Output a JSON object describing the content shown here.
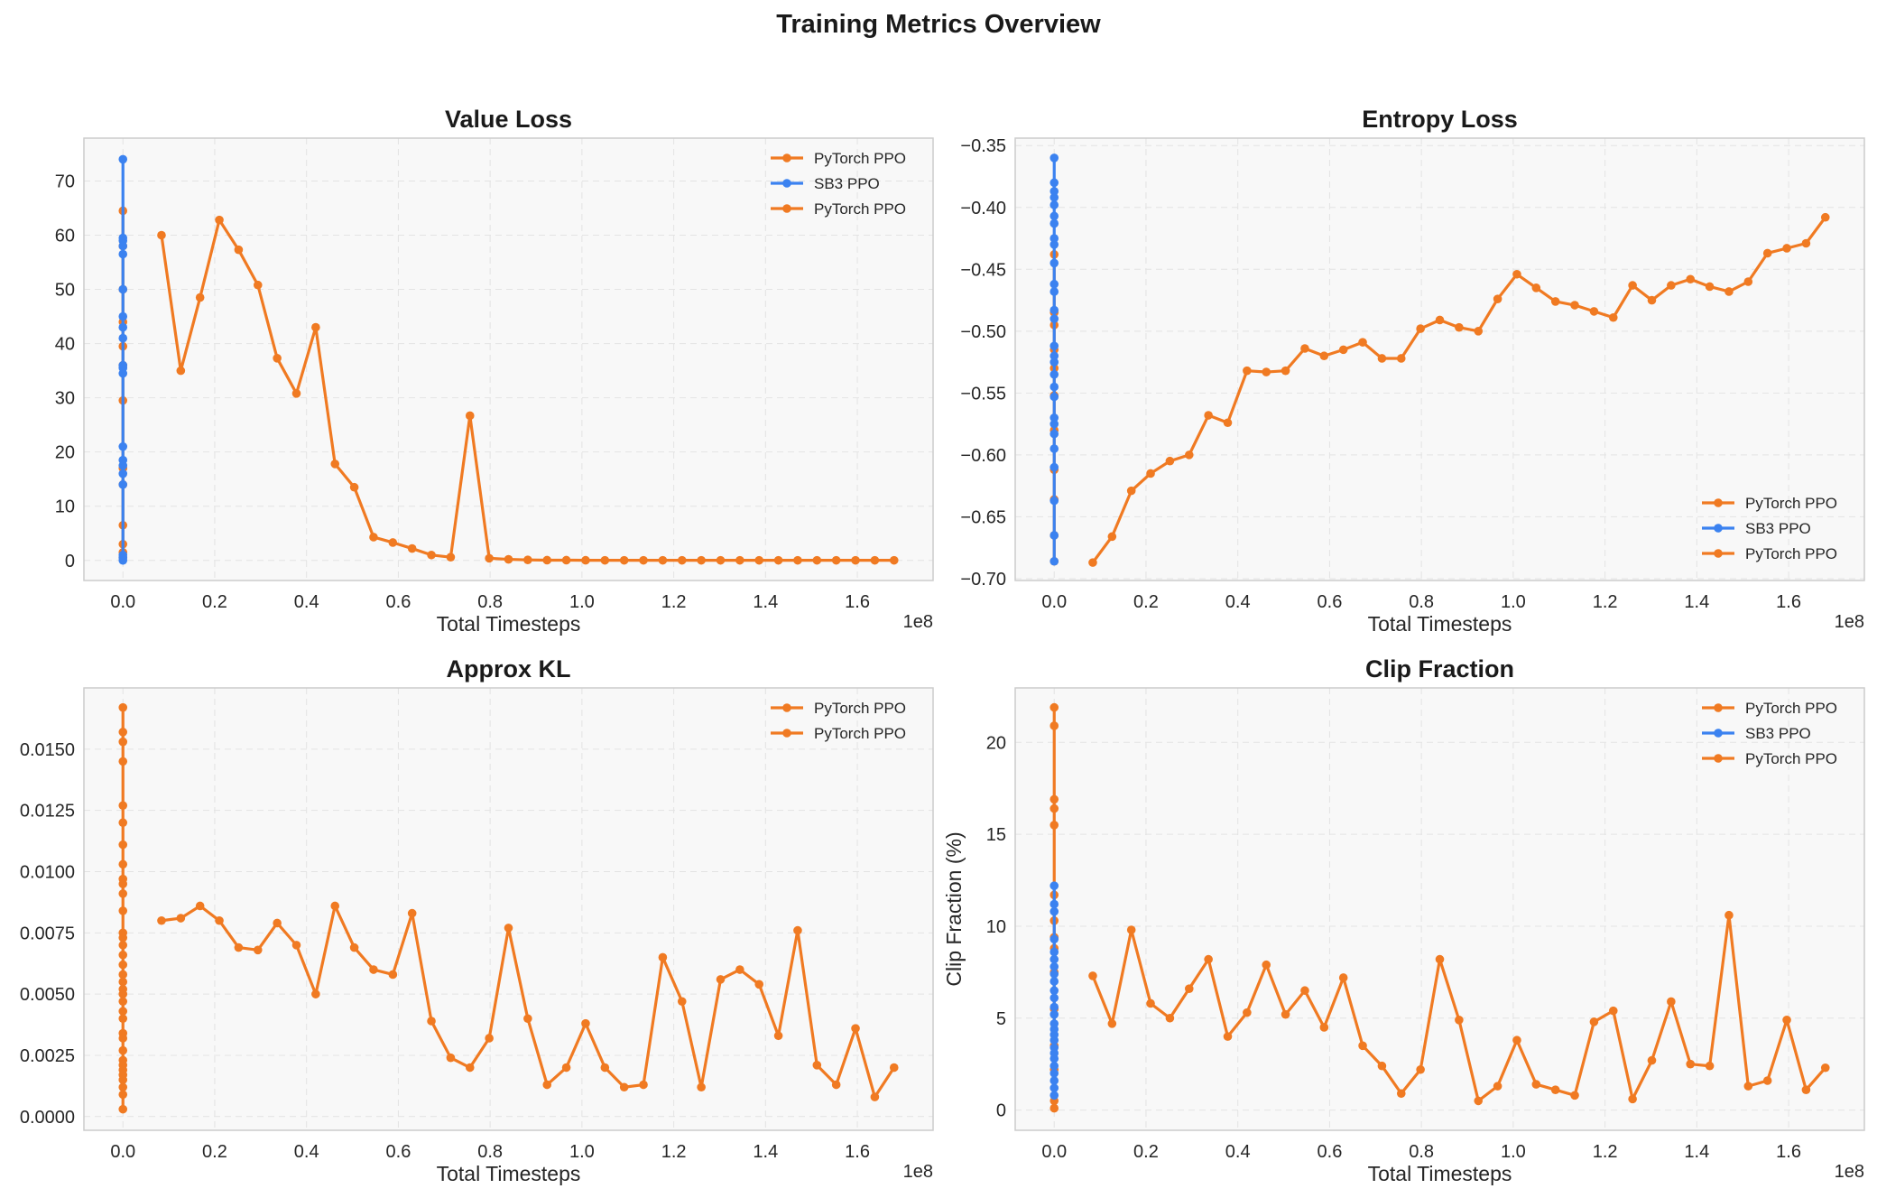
{
  "figure_title": "Training Metrics Overview",
  "colors": {
    "pytorch": "#f07a22",
    "sb3": "#3b82f0",
    "plot_bg": "#f8f8f8",
    "grid": "#e3e3e3",
    "frame": "#cccccc"
  },
  "chart_data": [
    {
      "type": "line",
      "title": "Value Loss",
      "xlabel": "Total Timesteps",
      "ylabel": "",
      "x_multiplier_label": "1e8",
      "xlim": [
        -0.085,
        1.765
      ],
      "ylim": [
        -3.7,
        77.9
      ],
      "xticks": [
        0.0,
        0.2,
        0.4,
        0.6,
        0.8,
        1.0,
        1.2,
        1.4,
        1.6
      ],
      "xtick_labels": [
        "0.0",
        "0.2",
        "0.4",
        "0.6",
        "0.8",
        "1.0",
        "1.2",
        "1.4",
        "1.6"
      ],
      "yticks": [
        0,
        10,
        20,
        30,
        40,
        50,
        60,
        70
      ],
      "ytick_labels": [
        "0",
        "10",
        "20",
        "30",
        "40",
        "50",
        "60",
        "70"
      ],
      "grid": true,
      "legend_loc": "upper-right",
      "legend": [
        "PyTorch PPO",
        "SB3 PPO",
        "PyTorch PPO"
      ],
      "series": [
        {
          "name": "PyTorch PPO",
          "color": "#f07a22",
          "x": [
            0,
            0,
            0,
            0,
            0,
            0,
            0,
            0,
            0,
            0,
            0,
            0,
            0
          ],
          "y": [
            0.5,
            3,
            6.5,
            14,
            17,
            29.5,
            36,
            39.5,
            44,
            50,
            58,
            64.5,
            1.5
          ]
        },
        {
          "name": "SB3 PPO",
          "color": "#3b82f0",
          "x": [
            0,
            0,
            0,
            0,
            0,
            0,
            0,
            0,
            0,
            0,
            0,
            0,
            0,
            0,
            0,
            0,
            0,
            0,
            0,
            0
          ],
          "y": [
            0,
            0.5,
            1,
            14,
            16,
            17.5,
            18.5,
            21,
            34.5,
            35.5,
            36,
            41,
            43,
            45,
            50,
            56.5,
            58,
            59,
            59.5,
            74
          ]
        },
        {
          "name": "PyTorch PPO",
          "color": "#f07a22",
          "x": [
            0.084,
            0.126,
            0.168,
            0.21,
            0.252,
            0.294,
            0.336,
            0.378,
            0.42,
            0.462,
            0.504,
            0.546,
            0.588,
            0.63,
            0.672,
            0.714,
            0.756,
            0.798,
            0.84,
            0.882,
            0.924,
            0.966,
            1.008,
            1.05,
            1.092,
            1.134,
            1.176,
            1.218,
            1.26,
            1.302,
            1.344,
            1.386,
            1.428,
            1.47,
            1.512,
            1.554,
            1.596,
            1.638,
            1.68
          ],
          "y": [
            60,
            35,
            48.5,
            62.8,
            57.3,
            50.8,
            37.3,
            30.8,
            43,
            17.8,
            13.5,
            4.3,
            3.3,
            2.2,
            1,
            0.6,
            26.7,
            0.4,
            0.2,
            0.1,
            0.05,
            0.05,
            0.03,
            0.02,
            0.02,
            0.02,
            0.02,
            0.02,
            0.02,
            0.02,
            0.02,
            0.02,
            0.02,
            0.02,
            0.02,
            0.02,
            0.02,
            0.02,
            0.02
          ]
        }
      ]
    },
    {
      "type": "line",
      "title": "Entropy Loss",
      "xlabel": "Total Timesteps",
      "ylabel": "",
      "x_multiplier_label": "1e8",
      "xlim": [
        -0.085,
        1.765
      ],
      "ylim": [
        -0.7015,
        -0.344
      ],
      "xticks": [
        0.0,
        0.2,
        0.4,
        0.6,
        0.8,
        1.0,
        1.2,
        1.4,
        1.6
      ],
      "xtick_labels": [
        "0.0",
        "0.2",
        "0.4",
        "0.6",
        "0.8",
        "1.0",
        "1.2",
        "1.4",
        "1.6"
      ],
      "yticks": [
        -0.7,
        -0.65,
        -0.6,
        -0.55,
        -0.5,
        -0.45,
        -0.4,
        -0.35
      ],
      "ytick_labels": [
        "−0.70",
        "−0.65",
        "−0.60",
        "−0.55",
        "−0.50",
        "−0.45",
        "−0.40",
        "−0.35"
      ],
      "grid": true,
      "legend_loc": "lower-right",
      "legend": [
        "PyTorch PPO",
        "SB3 PPO",
        "PyTorch PPO"
      ],
      "series": [
        {
          "name": "PyTorch PPO",
          "color": "#f07a22",
          "x": [
            0,
            0,
            0,
            0,
            0,
            0,
            0,
            0,
            0,
            0,
            0
          ],
          "y": [
            -0.686,
            -0.665,
            -0.636,
            -0.612,
            -0.58,
            -0.552,
            -0.53,
            -0.515,
            -0.495,
            -0.485,
            -0.438
          ]
        },
        {
          "name": "SB3 PPO",
          "color": "#3b82f0",
          "x": [
            0,
            0,
            0,
            0,
            0,
            0,
            0,
            0,
            0,
            0,
            0,
            0,
            0,
            0,
            0,
            0,
            0,
            0,
            0,
            0,
            0,
            0,
            0,
            0,
            0,
            0,
            0,
            0
          ],
          "y": [
            -0.686,
            -0.665,
            -0.637,
            -0.61,
            -0.595,
            -0.583,
            -0.575,
            -0.57,
            -0.553,
            -0.545,
            -0.535,
            -0.525,
            -0.52,
            -0.512,
            -0.49,
            -0.483,
            -0.468,
            -0.462,
            -0.445,
            -0.43,
            -0.425,
            -0.413,
            -0.407,
            -0.398,
            -0.392,
            -0.387,
            -0.38,
            -0.36
          ]
        },
        {
          "name": "PyTorch PPO",
          "color": "#f07a22",
          "x": [
            0.084,
            0.126,
            0.168,
            0.21,
            0.252,
            0.294,
            0.336,
            0.378,
            0.42,
            0.462,
            0.504,
            0.546,
            0.588,
            0.63,
            0.672,
            0.714,
            0.756,
            0.798,
            0.84,
            0.882,
            0.924,
            0.966,
            1.008,
            1.05,
            1.092,
            1.134,
            1.176,
            1.218,
            1.26,
            1.302,
            1.344,
            1.386,
            1.428,
            1.47,
            1.512,
            1.554,
            1.596,
            1.638,
            1.68
          ],
          "y": [
            -0.687,
            -0.666,
            -0.629,
            -0.615,
            -0.605,
            -0.6,
            -0.568,
            -0.574,
            -0.532,
            -0.533,
            -0.532,
            -0.514,
            -0.52,
            -0.515,
            -0.509,
            -0.522,
            -0.522,
            -0.498,
            -0.491,
            -0.497,
            -0.5,
            -0.474,
            -0.454,
            -0.465,
            -0.476,
            -0.479,
            -0.484,
            -0.489,
            -0.463,
            -0.475,
            -0.463,
            -0.458,
            -0.464,
            -0.468,
            -0.46,
            -0.437,
            -0.433,
            -0.429,
            -0.408
          ]
        }
      ]
    },
    {
      "type": "line",
      "title": "Approx KL",
      "xlabel": "Total Timesteps",
      "ylabel": "",
      "x_multiplier_label": "1e8",
      "xlim": [
        -0.085,
        1.765
      ],
      "ylim": [
        -0.00056,
        0.0175
      ],
      "xticks": [
        0.0,
        0.2,
        0.4,
        0.6,
        0.8,
        1.0,
        1.2,
        1.4,
        1.6
      ],
      "xtick_labels": [
        "0.0",
        "0.2",
        "0.4",
        "0.6",
        "0.8",
        "1.0",
        "1.2",
        "1.4",
        "1.6"
      ],
      "yticks": [
        0.0,
        0.0025,
        0.005,
        0.0075,
        0.01,
        0.0125,
        0.015
      ],
      "ytick_labels": [
        "0.0000",
        "0.0025",
        "0.0050",
        "0.0075",
        "0.0100",
        "0.0125",
        "0.0150"
      ],
      "grid": true,
      "legend_loc": "upper-right",
      "legend": [
        "PyTorch PPO",
        "PyTorch PPO"
      ],
      "series": [
        {
          "name": "PyTorch PPO",
          "color": "#f07a22",
          "x": [
            0,
            0,
            0,
            0,
            0,
            0,
            0,
            0,
            0,
            0,
            0,
            0,
            0,
            0,
            0,
            0,
            0,
            0,
            0,
            0,
            0,
            0,
            0,
            0,
            0,
            0,
            0,
            0,
            0,
            0,
            0,
            0,
            0,
            0,
            0
          ],
          "y": [
            0.0003,
            0.0009,
            0.0012,
            0.0015,
            0.0017,
            0.0019,
            0.0023,
            0.0027,
            0.0032,
            0.0034,
            0.004,
            0.0043,
            0.005,
            0.0052,
            0.0055,
            0.0058,
            0.0062,
            0.0066,
            0.007,
            0.0073,
            0.0075,
            0.0084,
            0.0091,
            0.0095,
            0.0097,
            0.0103,
            0.0111,
            0.012,
            0.0127,
            0.0145,
            0.0153,
            0.0157,
            0.0167,
            0.0021,
            0.0047
          ]
        },
        {
          "name": "PyTorch PPO",
          "color": "#f07a22",
          "x": [
            0.084,
            0.126,
            0.168,
            0.21,
            0.252,
            0.294,
            0.336,
            0.378,
            0.42,
            0.462,
            0.504,
            0.546,
            0.588,
            0.63,
            0.672,
            0.714,
            0.756,
            0.798,
            0.84,
            0.882,
            0.924,
            0.966,
            1.008,
            1.05,
            1.092,
            1.134,
            1.176,
            1.218,
            1.26,
            1.302,
            1.344,
            1.386,
            1.428,
            1.47,
            1.512,
            1.554,
            1.596,
            1.638,
            1.68
          ],
          "y": [
            0.008,
            0.0081,
            0.0086,
            0.008,
            0.0069,
            0.0068,
            0.0079,
            0.007,
            0.005,
            0.0086,
            0.0069,
            0.006,
            0.0058,
            0.0083,
            0.0039,
            0.0024,
            0.002,
            0.0032,
            0.0077,
            0.004,
            0.0013,
            0.002,
            0.0038,
            0.002,
            0.0012,
            0.0013,
            0.0065,
            0.0047,
            0.0012,
            0.0056,
            0.006,
            0.0054,
            0.0033,
            0.0076,
            0.0021,
            0.0013,
            0.0036,
            0.0008,
            0.002
          ]
        }
      ]
    },
    {
      "type": "line",
      "title": "Clip Fraction",
      "xlabel": "Total Timesteps",
      "ylabel": "Clip Fraction (%)",
      "x_multiplier_label": "1e8",
      "xlim": [
        -0.085,
        1.765
      ],
      "ylim": [
        -1.1,
        22.96
      ],
      "xticks": [
        0.0,
        0.2,
        0.4,
        0.6,
        0.8,
        1.0,
        1.2,
        1.4,
        1.6
      ],
      "xtick_labels": [
        "0.0",
        "0.2",
        "0.4",
        "0.6",
        "0.8",
        "1.0",
        "1.2",
        "1.4",
        "1.6"
      ],
      "yticks": [
        0,
        5,
        10,
        15,
        20
      ],
      "ytick_labels": [
        "0",
        "5",
        "10",
        "15",
        "20"
      ],
      "grid": true,
      "legend_loc": "upper-right",
      "legend": [
        "PyTorch PPO",
        "SB3 PPO",
        "PyTorch PPO"
      ],
      "series": [
        {
          "name": "PyTorch PPO",
          "color": "#f07a22",
          "x": [
            0,
            0,
            0,
            0,
            0,
            0,
            0,
            0,
            0,
            0,
            0,
            0,
            0,
            0,
            0
          ],
          "y": [
            0.1,
            0.5,
            2.2,
            3.5,
            5.5,
            7.5,
            8.8,
            9.4,
            10.3,
            11.7,
            15.5,
            16.4,
            16.9,
            20.9,
            21.9
          ]
        },
        {
          "name": "SB3 PPO",
          "color": "#3b82f0",
          "x": [
            0,
            0,
            0,
            0,
            0,
            0,
            0,
            0,
            0,
            0,
            0,
            0,
            0,
            0,
            0,
            0,
            0,
            0,
            0,
            0,
            0,
            0,
            0,
            0,
            0
          ],
          "y": [
            0.8,
            1.2,
            1.6,
            2.0,
            2.4,
            2.8,
            3.1,
            3.4,
            3.8,
            4.1,
            4.4,
            4.7,
            5.2,
            5.6,
            6.1,
            6.5,
            7.0,
            7.4,
            7.8,
            8.2,
            8.6,
            9.3,
            10.8,
            11.2,
            12.2
          ]
        },
        {
          "name": "PyTorch PPO",
          "color": "#f07a22",
          "x": [
            0.084,
            0.126,
            0.168,
            0.21,
            0.252,
            0.294,
            0.336,
            0.378,
            0.42,
            0.462,
            0.504,
            0.546,
            0.588,
            0.63,
            0.672,
            0.714,
            0.756,
            0.798,
            0.84,
            0.882,
            0.924,
            0.966,
            1.008,
            1.05,
            1.092,
            1.134,
            1.176,
            1.218,
            1.26,
            1.302,
            1.344,
            1.386,
            1.428,
            1.47,
            1.512,
            1.554,
            1.596,
            1.638,
            1.68
          ],
          "y": [
            7.3,
            4.7,
            9.8,
            5.8,
            5.0,
            6.6,
            8.2,
            4.0,
            5.3,
            7.9,
            5.2,
            6.5,
            4.5,
            7.2,
            3.5,
            2.4,
            0.9,
            2.2,
            8.2,
            4.9,
            0.5,
            1.3,
            3.8,
            1.4,
            1.1,
            0.8,
            4.8,
            5.4,
            0.6,
            2.7,
            5.9,
            2.5,
            2.4,
            10.6,
            1.3,
            1.6,
            4.9,
            1.1,
            2.3
          ]
        }
      ]
    }
  ]
}
